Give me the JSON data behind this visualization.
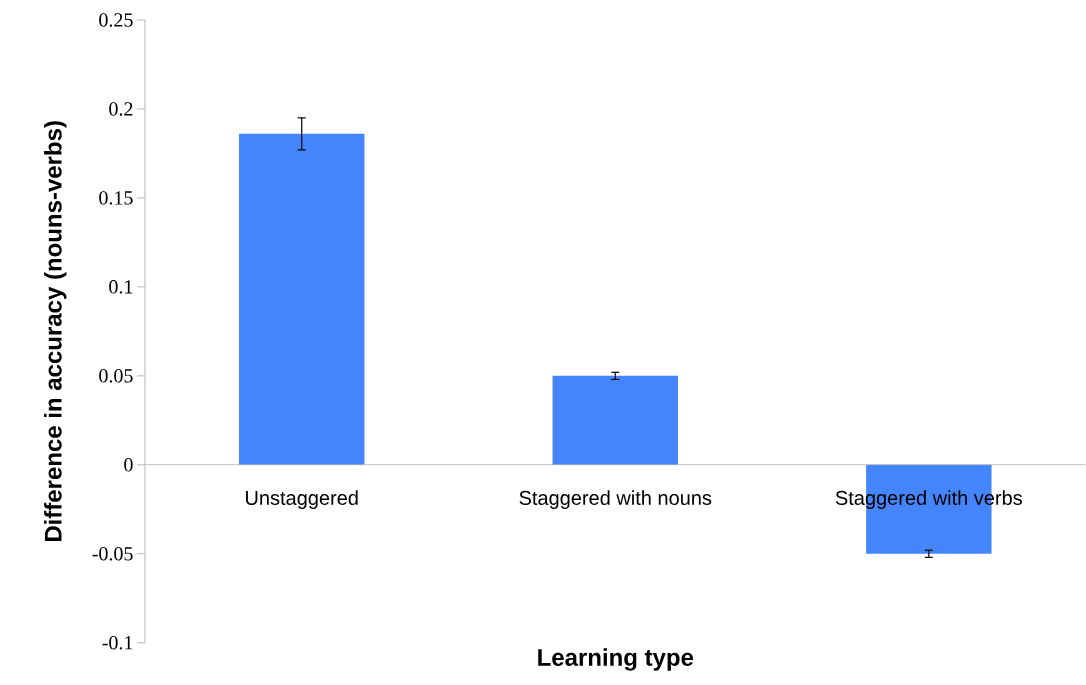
{
  "chart_data": {
    "type": "bar",
    "xlabel": "Learning type",
    "ylabel": "Difference in accuracy (nouns-verbs)",
    "categories": [
      "Unstaggered",
      "Staggered with nouns",
      "Staggered with verbs"
    ],
    "values": [
      0.186,
      0.05,
      -0.05
    ],
    "errors": [
      0.009,
      0.002,
      0.002
    ],
    "color": "#4485fb",
    "ylim": [
      -0.1,
      0.25
    ],
    "yticks": [
      -0.1,
      -0.05,
      0,
      0.05,
      0.1,
      0.15,
      0.2,
      0.25
    ],
    "grid": false
  }
}
